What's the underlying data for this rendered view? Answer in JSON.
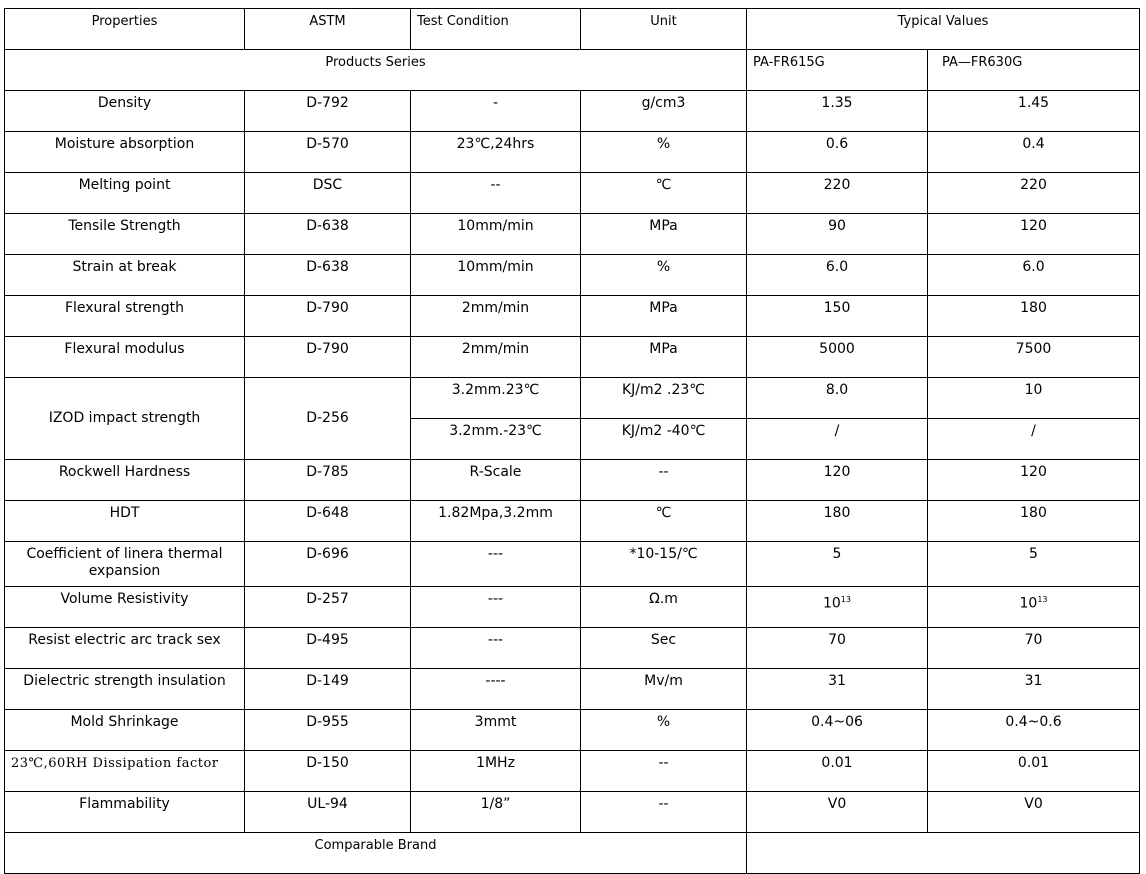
{
  "header": {
    "properties": "Properties",
    "astm": "ASTM",
    "test_condition": "Test Condition",
    "unit": "Unit",
    "typical_values": "Typical Values"
  },
  "series": {
    "label": "Products Series",
    "product_a": "PA-FR615G",
    "product_b": "PA—FR630G"
  },
  "rows": [
    {
      "property": "Density",
      "astm": "D-792",
      "condition": "-",
      "unit": "g/cm3",
      "a": "1.35",
      "b": "1.45"
    },
    {
      "property": "Moisture absorption",
      "astm": "D-570",
      "condition": "23℃,24hrs",
      "unit": "%",
      "a": "0.6",
      "b": "0.4"
    },
    {
      "property": "Melting point",
      "astm": "DSC",
      "condition": "--",
      "unit": "℃",
      "a": "220",
      "b": "220"
    },
    {
      "property": "Tensile Strength",
      "astm": "D-638",
      "condition": "10mm/min",
      "unit": "MPa",
      "a": "90",
      "b": "120"
    },
    {
      "property": "Strain at break",
      "astm": "D-638",
      "condition": "10mm/min",
      "unit": "%",
      "a": "6.0",
      "b": "6.0"
    },
    {
      "property": "Flexural strength",
      "astm": "D-790",
      "condition": "2mm/min",
      "unit": "MPa",
      "a": "150",
      "b": "180"
    },
    {
      "property": "Flexural modulus",
      "astm": "D-790",
      "condition": "2mm/min",
      "unit": "MPa",
      "a": "5000",
      "b": "7500"
    }
  ],
  "izod": {
    "property": "IZOD impact strength",
    "astm": "D-256",
    "sub": [
      {
        "condition": "3.2mm.23℃",
        "unit": "KJ/m2 .23℃",
        "a": "8.0",
        "b": "10"
      },
      {
        "condition": "3.2mm.-23℃",
        "unit": "KJ/m2 -40℃",
        "a": "/",
        "b": "/"
      }
    ]
  },
  "rows2": [
    {
      "property": "Rockwell Hardness",
      "astm": "D-785",
      "condition": "R-Scale",
      "unit": "--",
      "a": "120",
      "b": "120"
    },
    {
      "property": "HDT",
      "astm": "D-648",
      "condition": "1.82Mpa,3.2mm",
      "unit": "℃",
      "a": "180",
      "b": "180"
    },
    {
      "property": "Coefficient of linera thermal expansion",
      "astm": "D-696",
      "condition": "---",
      "unit": "*10-15/℃",
      "a": "5",
      "b": "5"
    },
    {
      "property": "Volume Resistivity",
      "astm": "D-257",
      "condition": "---",
      "unit": "Ω.m",
      "a": "10",
      "a_exp": "13",
      "b": "10",
      "b_exp": "13"
    },
    {
      "property": "Resist electric arc   track sex",
      "astm": "D-495",
      "condition": "---",
      "unit": "Sec",
      "a": "70",
      "b": "70"
    },
    {
      "property": "Dielectric strength insulation",
      "astm": "D-149",
      "condition": "----",
      "unit": "Mv/m",
      "a": "31",
      "b": "31"
    },
    {
      "property": "Mold Shrinkage",
      "astm": "D-955",
      "condition": "3mmt",
      "unit": "%",
      "a": "0.4~06",
      "b": "0.4~0.6"
    },
    {
      "property": "23℃,60RH Dissipation factor",
      "astm": "D-150",
      "condition": "1MHz",
      "unit": "--",
      "a": "0.01",
      "b": "0.01"
    },
    {
      "property": "Flammability",
      "astm": "UL-94",
      "condition": "1/8”",
      "unit": "--",
      "a": "V0",
      "b": "V0"
    }
  ],
  "footer": {
    "comparable_brand": "Comparable Brand"
  }
}
